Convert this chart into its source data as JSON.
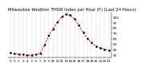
{
  "title": "Milwaukee Weather THSW Index per Hour (F) (Last 24 Hours)",
  "hours": [
    0,
    1,
    2,
    3,
    4,
    5,
    6,
    7,
    8,
    9,
    10,
    11,
    12,
    13,
    14,
    15,
    16,
    17,
    18,
    19,
    20,
    21,
    22,
    23
  ],
  "values": [
    33,
    32,
    31,
    30,
    29,
    29,
    30,
    32,
    48,
    65,
    78,
    90,
    100,
    105,
    103,
    96,
    84,
    71,
    60,
    52,
    46,
    43,
    40,
    38
  ],
  "line_color": "#ff0000",
  "marker_color": "#000000",
  "bg_color": "#ffffff",
  "grid_color": "#888888",
  "title_color": "#000000",
  "title_fontsize": 3.8,
  "tick_fontsize": 3.2,
  "ylim": [
    25,
    110
  ],
  "yticks": [
    30,
    40,
    50,
    60,
    70,
    80,
    90,
    100
  ],
  "xtick_every": 1
}
